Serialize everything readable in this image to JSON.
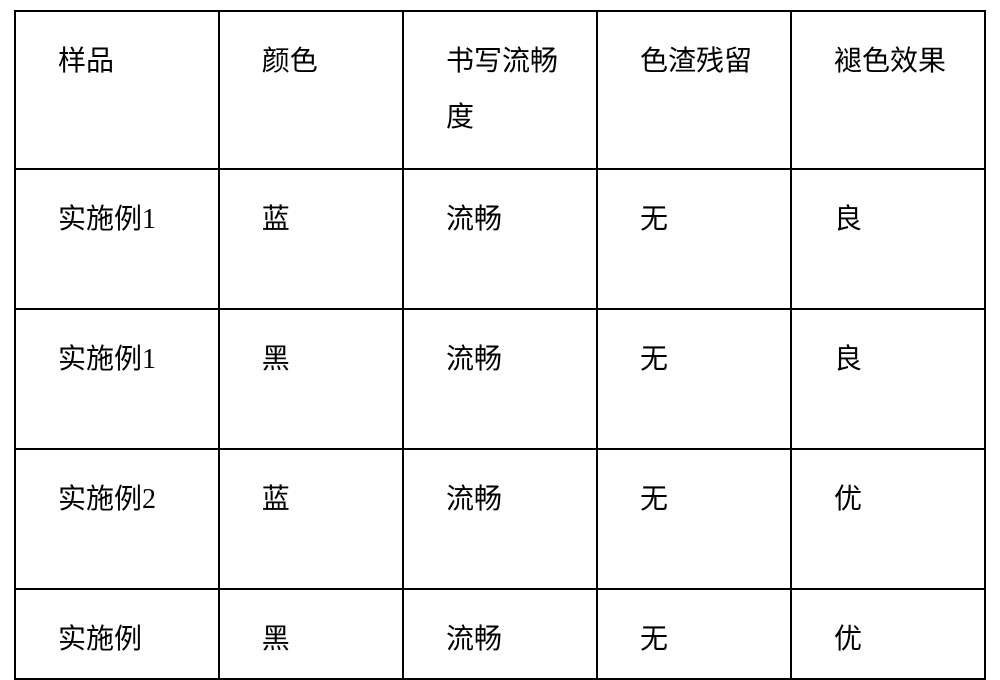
{
  "table": {
    "type": "table",
    "border_color": "#000000",
    "background_color": "#ffffff",
    "text_color": "#000000",
    "font_size_pt": 21,
    "line_height": 2.0,
    "columns": [
      {
        "key": "sample",
        "label": "样品",
        "width_pct": 21
      },
      {
        "key": "color",
        "label": "颜色",
        "width_pct": 19
      },
      {
        "key": "fluency",
        "label": "书写流畅度",
        "width_pct": 20
      },
      {
        "key": "residue",
        "label": "色渣残留",
        "width_pct": 20
      },
      {
        "key": "fade",
        "label": "褪色效果",
        "width_pct": 20
      }
    ],
    "rows": [
      {
        "sample": "实施例1",
        "color": "蓝",
        "fluency": "流畅",
        "residue": "无",
        "fade": "良"
      },
      {
        "sample": "实施例1",
        "color": "黑",
        "fluency": "流畅",
        "residue": "无",
        "fade": "良"
      },
      {
        "sample": "实施例2",
        "color": "蓝",
        "fluency": "流畅",
        "residue": "无",
        "fade": "优"
      },
      {
        "sample": "实施例",
        "color": "黑",
        "fluency": "流畅",
        "residue": "无",
        "fade": "优"
      }
    ]
  }
}
